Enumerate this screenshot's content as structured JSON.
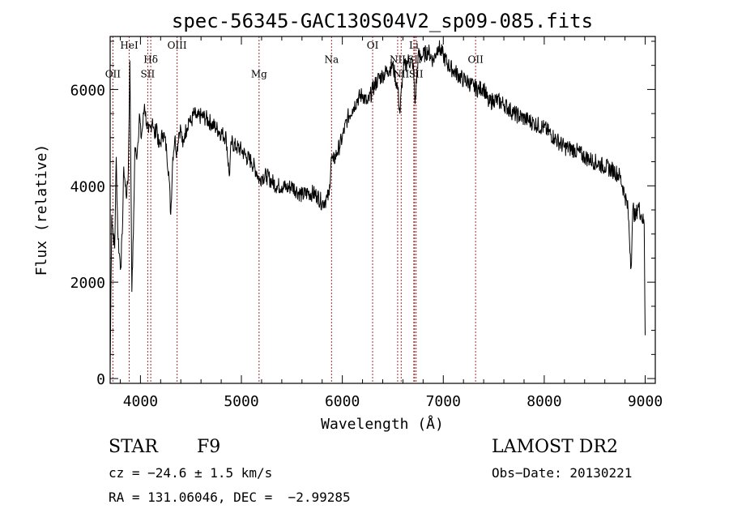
{
  "chart_data": {
    "type": "line",
    "title": "spec-56345-GAC130S04V2_sp09-085.fits",
    "xlabel": "Wavelength (Å)",
    "ylabel": "Flux (relative)",
    "xlim": [
      3700,
      9100
    ],
    "ylim": [
      -100,
      7100
    ],
    "x_ticks": [
      4000,
      5000,
      6000,
      7000,
      8000,
      9000
    ],
    "y_ticks": [
      0,
      2000,
      4000,
      6000
    ],
    "grid": false,
    "legend": "none",
    "line_color": "#000000",
    "marker_color": "#a52a2a",
    "series": [
      {
        "x": [
          3700,
          3715,
          3730,
          3745,
          3760,
          3775,
          3790,
          3805,
          3820,
          3835,
          3850,
          3865,
          3880,
          3895,
          3905,
          3915,
          3930,
          3945,
          3960,
          3975,
          3990,
          4005,
          4020,
          4040,
          4060,
          4080,
          4100,
          4120,
          4140,
          4160,
          4180,
          4200,
          4220,
          4240,
          4260,
          4280,
          4300,
          4320,
          4340,
          4360,
          4380,
          4400,
          4420,
          4440,
          4460,
          4480,
          4500,
          4530,
          4560,
          4600,
          4650,
          4700,
          4750,
          4800,
          4850,
          4880,
          4900,
          4950,
          5000,
          5050,
          5100,
          5150,
          5180,
          5200,
          5250,
          5300,
          5350,
          5400,
          5450,
          5500,
          5550,
          5600,
          5650,
          5700,
          5750,
          5800,
          5830,
          5850,
          5870,
          5890,
          5910,
          5950,
          6000,
          6050,
          6100,
          6150,
          6200,
          6250,
          6300,
          6350,
          6400,
          6450,
          6500,
          6550,
          6570,
          6600,
          6650,
          6700,
          6720,
          6750,
          6800,
          6850,
          6900,
          6950,
          7000,
          7050,
          7100,
          7150,
          7200,
          7250,
          7300,
          7350,
          7400,
          7450,
          7500,
          7600,
          7700,
          7800,
          7900,
          8000,
          8100,
          8200,
          8300,
          8400,
          8500,
          8600,
          8700,
          8750,
          8800,
          8830,
          8860,
          8880,
          8900,
          8930,
          8960,
          8990,
          9000
        ],
        "values": [
          200,
          3400,
          3000,
          2700,
          4600,
          3100,
          2600,
          2300,
          3000,
          4400,
          4000,
          3800,
          4300,
          6600,
          4400,
          1800,
          3000,
          4800,
          4600,
          4900,
          5500,
          5000,
          5200,
          5700,
          5300,
          5100,
          5200,
          5400,
          5000,
          5300,
          4800,
          4900,
          5100,
          5000,
          4700,
          4300,
          3400,
          4600,
          5000,
          4700,
          5100,
          5200,
          4800,
          5100,
          5200,
          5400,
          5300,
          5500,
          5400,
          5450,
          5400,
          5300,
          5200,
          5100,
          5000,
          4200,
          4900,
          4800,
          4750,
          4600,
          4500,
          4300,
          4100,
          4200,
          4200,
          4100,
          4000,
          4000,
          3950,
          4000,
          3900,
          3800,
          3850,
          3850,
          3800,
          3650,
          3700,
          3750,
          3800,
          4600,
          4500,
          4700,
          5000,
          5400,
          5600,
          5800,
          5900,
          5700,
          6000,
          6200,
          6300,
          6400,
          6500,
          6000,
          5500,
          6400,
          6600,
          6550,
          5700,
          6700,
          6700,
          6800,
          6600,
          6900,
          6700,
          6500,
          6400,
          6300,
          6200,
          6150,
          6050,
          6000,
          6050,
          5700,
          5800,
          5700,
          5500,
          5400,
          5300,
          5200,
          5000,
          4800,
          4750,
          4600,
          4500,
          4400,
          4300,
          4200,
          3800,
          3500,
          2300,
          3600,
          3300,
          3600,
          3400,
          3200,
          900
        ]
      }
    ],
    "lines": [
      {
        "label": "OII",
        "x": 3727,
        "label_y": 6250
      },
      {
        "label": "HeI",
        "x": 3889,
        "label_y": 6850
      },
      {
        "label": "Hδ",
        "x": 4102,
        "label_y": 6550
      },
      {
        "label": "SII",
        "x": 4072,
        "label_y": 6250
      },
      {
        "label": "OIII",
        "x": 4363,
        "label_y": 6850
      },
      {
        "label": "Mg",
        "x": 5175,
        "label_y": 6250
      },
      {
        "label": "Na",
        "x": 5893,
        "label_y": 6550
      },
      {
        "label": "OI",
        "x": 6300,
        "label_y": 6850
      },
      {
        "label": "NII",
        "x": 6548,
        "label_y": 6550
      },
      {
        "label": "NII",
        "x": 6583,
        "label_y": 6250
      },
      {
        "label": "SII",
        "x": 6716,
        "label_y": 6550
      },
      {
        "label": "SII",
        "x": 6731,
        "label_y": 6250
      },
      {
        "label": "Li",
        "x": 6708,
        "label_y": 6850
      },
      {
        "label": "OII",
        "x": 7320,
        "label_y": 6550
      }
    ]
  },
  "info": {
    "object_class": "STAR",
    "subclass": "F9",
    "survey": "LAMOST DR2",
    "cz": "cz = −24.6 ± 1.5 km/s",
    "obs_date": "Obs−Date: 20130221",
    "coords": "RA = 131.06046, DEC =  −2.99285"
  }
}
